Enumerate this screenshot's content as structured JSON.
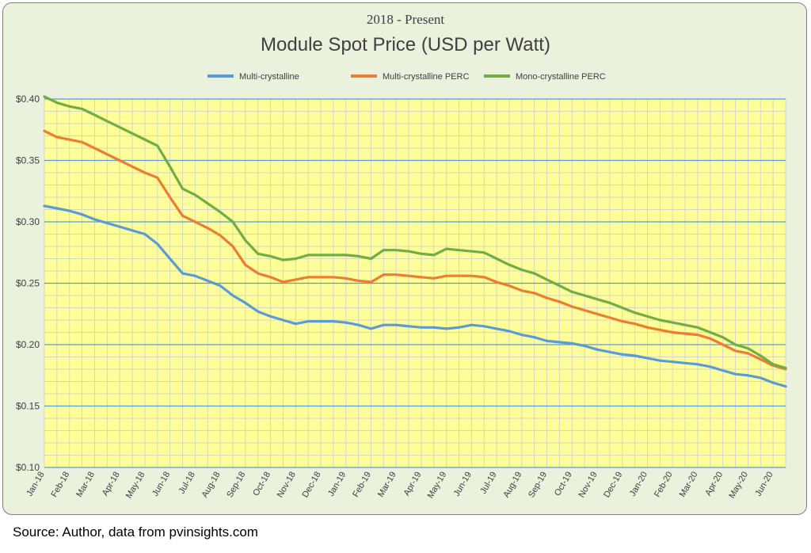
{
  "chart_data": {
    "type": "line",
    "subtitle": "2018 - Present",
    "title": "Module Spot Price (USD per Watt)",
    "ylim": [
      0.1,
      0.4
    ],
    "y_ticks": [
      "$0.10",
      "$0.15",
      "$0.20",
      "$0.25",
      "$0.30",
      "$0.35",
      "$0.40"
    ],
    "y_tick_values": [
      0.1,
      0.15,
      0.2,
      0.25,
      0.3,
      0.35,
      0.4
    ],
    "grid": true,
    "legend_position": "top",
    "x_tick_labels": [
      "Jan-18",
      "Feb-18",
      "Mar-18",
      "Apr-18",
      "May-18",
      "Jun-18",
      "Jul-18",
      "Aug-18",
      "Sep-18",
      "Oct-18",
      "Nov-18",
      "Dec-18",
      "Jan-19",
      "Feb-19",
      "Mar-19",
      "Apr-19",
      "May-19",
      "Jun-19",
      "Jul-19",
      "Aug-19",
      "Sep-19",
      "Oct-19",
      "Nov-19",
      "Dec-19",
      "Jan-20",
      "Feb-20",
      "Mar-20",
      "Apr-20",
      "May-20",
      "Jun-20"
    ],
    "x": [
      0,
      0.5,
      1,
      1.5,
      2,
      2.5,
      3,
      3.5,
      4,
      4.5,
      5,
      5.5,
      6,
      6.5,
      7,
      7.5,
      8,
      8.5,
      9,
      9.5,
      10,
      10.5,
      11,
      11.5,
      12,
      12.5,
      13,
      13.5,
      14,
      14.5,
      15,
      15.5,
      16,
      16.5,
      17,
      17.5,
      18,
      18.5,
      19,
      19.5,
      20,
      20.5,
      21,
      21.5,
      22,
      22.5,
      23,
      23.5,
      24,
      24.5,
      25,
      25.5,
      26,
      26.5,
      27,
      27.5,
      28,
      28.5,
      29,
      29.5
    ],
    "series": [
      {
        "name": "Multi-crystalline",
        "color": "#5b9bd5",
        "values": [
          0.313,
          0.311,
          0.309,
          0.306,
          0.302,
          0.299,
          0.296,
          0.293,
          0.29,
          0.282,
          0.27,
          0.258,
          0.256,
          0.252,
          0.248,
          0.24,
          0.234,
          0.227,
          0.223,
          0.22,
          0.217,
          0.219,
          0.219,
          0.219,
          0.218,
          0.216,
          0.213,
          0.216,
          0.216,
          0.215,
          0.214,
          0.214,
          0.213,
          0.214,
          0.216,
          0.215,
          0.213,
          0.211,
          0.208,
          0.206,
          0.203,
          0.202,
          0.201,
          0.199,
          0.196,
          0.194,
          0.192,
          0.191,
          0.189,
          0.187,
          0.186,
          0.185,
          0.184,
          0.182,
          0.179,
          0.176,
          0.175,
          0.173,
          0.169,
          0.166
        ]
      },
      {
        "name": "Multi-crystalline PERC",
        "color": "#ed7d31",
        "values": [
          0.374,
          0.369,
          0.367,
          0.365,
          0.36,
          0.355,
          0.35,
          0.345,
          0.34,
          0.336,
          0.32,
          0.305,
          0.3,
          0.295,
          0.289,
          0.28,
          0.265,
          0.258,
          0.255,
          0.251,
          0.253,
          0.255,
          0.255,
          0.255,
          0.254,
          0.252,
          0.251,
          0.257,
          0.257,
          0.256,
          0.255,
          0.254,
          0.256,
          0.256,
          0.256,
          0.255,
          0.251,
          0.248,
          0.244,
          0.242,
          0.238,
          0.235,
          0.231,
          0.228,
          0.225,
          0.222,
          0.219,
          0.217,
          0.214,
          0.212,
          0.21,
          0.209,
          0.208,
          0.205,
          0.2,
          0.195,
          0.193,
          0.188,
          0.183,
          0.18
        ]
      },
      {
        "name": "Mono-crystalline PERC",
        "color": "#70ad47",
        "values": [
          0.402,
          0.397,
          0.394,
          0.392,
          0.387,
          0.382,
          0.377,
          0.372,
          0.367,
          0.362,
          0.345,
          0.327,
          0.322,
          0.315,
          0.308,
          0.3,
          0.285,
          0.274,
          0.272,
          0.269,
          0.27,
          0.273,
          0.273,
          0.273,
          0.273,
          0.272,
          0.27,
          0.277,
          0.277,
          0.276,
          0.274,
          0.273,
          0.278,
          0.277,
          0.276,
          0.275,
          0.27,
          0.265,
          0.261,
          0.258,
          0.253,
          0.248,
          0.243,
          0.24,
          0.237,
          0.234,
          0.23,
          0.226,
          0.223,
          0.22,
          0.218,
          0.216,
          0.214,
          0.21,
          0.206,
          0.2,
          0.197,
          0.191,
          0.184,
          0.181
        ]
      }
    ]
  },
  "source": "Source: Author, data from pvinsights.com"
}
